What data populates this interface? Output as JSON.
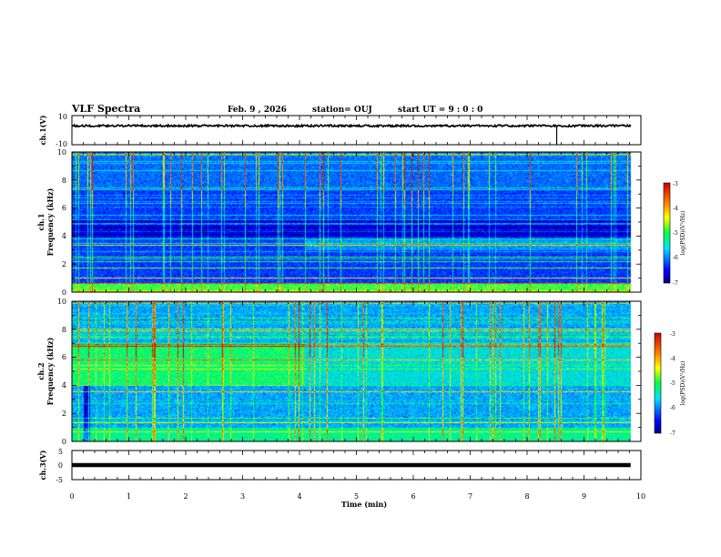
{
  "header": {
    "title": "VLF Spectra",
    "date": "Feb. 9 , 2026",
    "station": "station= OUJ",
    "start": "start  UT =  9 : 0  : 0"
  },
  "chart_data": [
    {
      "type": "line",
      "name": "ch1-waveform",
      "ylabel": "ch.1(V)",
      "ylim": [
        -10,
        10
      ],
      "yticks": [
        "10",
        "-10"
      ],
      "xlim": [
        0,
        10
      ],
      "baseline_v": 3,
      "spike_at_min": 8.52
    },
    {
      "type": "heatmap",
      "name": "ch1-spectrogram",
      "ylabel": "ch.1",
      "ylabel2": "Frequency (kHz)",
      "ylim": [
        0,
        10
      ],
      "yticks": [
        "0",
        "2",
        "4",
        "6",
        "8",
        "10"
      ],
      "xlim": [
        0,
        10
      ],
      "colorbar": {
        "label": "log(PSD)(V²/Hz)",
        "range": [
          -7,
          -3
        ],
        "ticks": [
          "-3",
          "-4",
          "-5",
          "-6",
          "-7"
        ]
      }
    },
    {
      "type": "heatmap",
      "name": "ch2-spectrogram",
      "ylabel": "ch.2",
      "ylabel2": "Frequency (kHz)",
      "ylim": [
        0,
        10
      ],
      "yticks": [
        "0",
        "2",
        "4",
        "6",
        "8",
        "10"
      ],
      "xlim": [
        0,
        10
      ],
      "colorbar": {
        "label": "log(PSD)(V²/Hz)",
        "range": [
          -7,
          -3
        ],
        "ticks": [
          "-3",
          "-4",
          "-5",
          "-6",
          "-7"
        ]
      }
    },
    {
      "type": "line",
      "name": "ch3-waveform",
      "ylabel": "ch.3(V)",
      "ylim": [
        -5,
        5
      ],
      "yticks": [
        "5",
        "0",
        "-5"
      ],
      "xlim": [
        0,
        10
      ],
      "baseline_v": 0,
      "xlabel": "Time (min)",
      "xticks": [
        "0",
        "1",
        "2",
        "3",
        "4",
        "5",
        "6",
        "7",
        "8",
        "9",
        "10"
      ],
      "data_end_min": 9.82
    }
  ]
}
